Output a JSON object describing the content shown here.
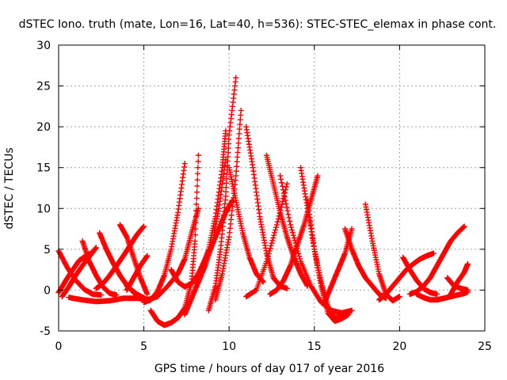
{
  "chart_data": {
    "type": "scatter",
    "title": "dSTEC Iono. truth (mate, Lon=16, Lat=40, h=536): STEC-STEC_elemax in phase cont.",
    "xlabel": "GPS time / hours of day 017 of year 2016",
    "ylabel": "dSTEC  / TECUs",
    "xlim": [
      0,
      25
    ],
    "ylim": [
      -5,
      30
    ],
    "x_ticks": [
      0,
      5,
      10,
      15,
      20,
      25
    ],
    "y_ticks": [
      -5,
      0,
      5,
      10,
      15,
      20,
      25,
      30
    ],
    "grid": true,
    "marker": "+",
    "color": "#ff0000",
    "series": [
      {
        "x": [
          0.0,
          0.5,
          1.0,
          1.5,
          2.0,
          2.5
        ],
        "y": [
          4.8,
          2.8,
          1.2,
          0.1,
          -0.5,
          -0.6
        ]
      },
      {
        "x": [
          0.0,
          0.4,
          0.8,
          1.2,
          1.6,
          2.0
        ],
        "y": [
          -0.3,
          1.1,
          2.4,
          3.6,
          4.2,
          4.6
        ]
      },
      {
        "x": [
          0.2,
          0.6,
          1.0,
          1.4,
          1.8,
          2.2
        ],
        "y": [
          -0.8,
          0.4,
          1.8,
          3.0,
          4.1,
          5.2
        ]
      },
      {
        "x": [
          1.4,
          1.8,
          2.2,
          2.6,
          3.0,
          3.4
        ],
        "y": [
          6.0,
          3.5,
          1.8,
          0.4,
          -0.4,
          -0.6
        ]
      },
      {
        "x": [
          2.2,
          2.6,
          3.0,
          3.4,
          3.8,
          4.2,
          4.6,
          5.0
        ],
        "y": [
          0.2,
          0.8,
          1.8,
          3.0,
          4.2,
          5.5,
          6.8,
          7.8
        ]
      },
      {
        "x": [
          2.4,
          2.8,
          3.2,
          3.6,
          4.0,
          4.4,
          4.8,
          5.2
        ],
        "y": [
          7.0,
          5.0,
          3.3,
          1.8,
          0.6,
          -0.3,
          -1.0,
          -1.3
        ]
      },
      {
        "x": [
          3.6,
          4.0,
          4.4,
          4.8,
          5.2
        ],
        "y": [
          8.0,
          6.5,
          4.0,
          1.5,
          -0.5
        ]
      },
      {
        "x": [
          4.0,
          4.4,
          4.8,
          5.2
        ],
        "y": [
          0.0,
          1.5,
          3.0,
          4.2
        ]
      },
      {
        "x": [
          0.6,
          1.4,
          2.2,
          3.0,
          3.8,
          4.6,
          5.4
        ],
        "y": [
          -0.9,
          -1.2,
          -1.4,
          -1.3,
          -1.0,
          -1.0,
          -1.2
        ]
      },
      {
        "x": [
          4.0,
          4.6,
          5.2,
          5.8,
          6.4,
          7.0,
          7.4,
          7.8,
          8.2
        ],
        "y": [
          0.5,
          -0.5,
          -1.2,
          -0.8,
          0.5,
          2.0,
          3.8,
          7.0,
          10.0
        ]
      },
      {
        "x": [
          5.0,
          5.4,
          5.8,
          6.2,
          6.6,
          7.0,
          7.4
        ],
        "y": [
          -1.5,
          -1.2,
          -0.2,
          1.8,
          5.0,
          9.5,
          15.5
        ]
      },
      {
        "x": [
          5.4,
          5.8,
          6.2,
          6.6,
          7.0,
          7.4,
          7.8,
          8.0,
          8.2
        ],
        "y": [
          -2.5,
          -3.8,
          -4.3,
          -4.0,
          -3.4,
          -2.2,
          1.0,
          6.0,
          16.5
        ]
      },
      {
        "x": [
          6.6,
          7.0,
          7.4,
          7.8,
          8.2,
          8.6,
          9.0,
          9.4,
          9.8,
          10.2
        ],
        "y": [
          2.5,
          1.0,
          0.4,
          0.8,
          2.0,
          3.8,
          5.5,
          7.5,
          9.5,
          11.0
        ]
      },
      {
        "x": [
          7.4,
          7.8,
          8.2,
          8.6,
          9.0,
          9.4,
          9.8
        ],
        "y": [
          -3.0,
          -1.0,
          1.0,
          3.0,
          5.5,
          10.0,
          16.0
        ]
      },
      {
        "x": [
          8.0,
          8.4,
          8.8,
          9.2,
          9.6,
          9.8
        ],
        "y": [
          0.8,
          2.5,
          5.0,
          9.0,
          15.0,
          19.5
        ]
      },
      {
        "x": [
          8.8,
          9.2,
          9.5,
          9.8,
          10.0,
          10.4
        ],
        "y": [
          -2.5,
          0.5,
          5.0,
          11.5,
          19.0,
          26.0
        ]
      },
      {
        "x": [
          9.2,
          9.6,
          10.0,
          10.4,
          10.7
        ],
        "y": [
          -1.2,
          2.0,
          6.5,
          14.0,
          22.0
        ]
      },
      {
        "x": [
          10.0,
          10.4,
          10.8,
          11.2,
          11.6,
          12.0
        ],
        "y": [
          15.0,
          11.0,
          7.0,
          4.0,
          2.0,
          1.0
        ]
      },
      {
        "x": [
          11.0,
          11.4,
          11.8,
          12.2,
          12.6,
          13.0,
          13.4
        ],
        "y": [
          20.0,
          15.0,
          9.0,
          4.5,
          1.5,
          0.5,
          0.2
        ]
      },
      {
        "x": [
          11.0,
          11.6,
          12.2,
          12.8,
          13.4
        ],
        "y": [
          -0.8,
          0.0,
          3.5,
          8.0,
          13.0
        ]
      },
      {
        "x": [
          12.2,
          12.6,
          13.0,
          13.4,
          13.8,
          14.2,
          14.6
        ],
        "y": [
          16.5,
          13.0,
          9.5,
          6.5,
          4.0,
          2.0,
          0.5
        ]
      },
      {
        "x": [
          12.4,
          12.8,
          13.2,
          13.6,
          14.0,
          14.4,
          14.8,
          15.2
        ],
        "y": [
          -0.5,
          0.0,
          1.2,
          3.0,
          5.5,
          8.0,
          11.0,
          14.0
        ]
      },
      {
        "x": [
          13.0,
          13.6,
          14.2,
          14.8,
          15.4,
          16.0,
          16.6,
          17.2
        ],
        "y": [
          14.0,
          8.0,
          3.5,
          0.5,
          -1.5,
          -2.5,
          -2.8,
          -2.5
        ]
      },
      {
        "x": [
          14.2,
          14.6,
          15.0,
          15.4,
          15.8,
          16.2,
          16.6
        ],
        "y": [
          15.0,
          10.0,
          5.0,
          1.0,
          -2.0,
          -3.5,
          -3.0
        ]
      },
      {
        "x": [
          14.6,
          15.0,
          15.4,
          15.8,
          16.2,
          16.6,
          17.0
        ],
        "y": [
          11.0,
          5.0,
          0.5,
          -2.8,
          -3.8,
          -3.5,
          -3.0
        ]
      },
      {
        "x": [
          15.6,
          16.0,
          16.4,
          16.8,
          17.2
        ],
        "y": [
          -1.5,
          0.5,
          2.5,
          4.5,
          7.5
        ]
      },
      {
        "x": [
          16.8,
          17.2,
          17.6,
          18.0,
          18.4,
          18.8,
          19.2
        ],
        "y": [
          7.5,
          5.0,
          3.0,
          1.5,
          0.5,
          -0.5,
          -1.0
        ]
      },
      {
        "x": [
          18.0,
          18.4,
          18.8,
          19.2,
          19.6,
          20.0
        ],
        "y": [
          10.5,
          6.0,
          2.0,
          -0.5,
          -1.3,
          -0.8
        ]
      },
      {
        "x": [
          18.8,
          19.2,
          19.6,
          20.0,
          20.4,
          20.8,
          21.2,
          21.6,
          22.0
        ],
        "y": [
          -1.2,
          -0.5,
          0.5,
          1.5,
          2.5,
          3.2,
          3.8,
          4.2,
          4.5
        ]
      },
      {
        "x": [
          20.2,
          20.6,
          21.0,
          21.4,
          21.8,
          22.2
        ],
        "y": [
          4.0,
          2.5,
          1.2,
          0.2,
          -0.3,
          -0.5
        ]
      },
      {
        "x": [
          20.6,
          21.0,
          21.4,
          21.8,
          22.2,
          22.6,
          23.0,
          23.4,
          23.8
        ],
        "y": [
          -0.5,
          -0.2,
          0.5,
          1.5,
          3.0,
          4.5,
          6.0,
          7.0,
          7.8
        ]
      },
      {
        "x": [
          21.0,
          21.4,
          21.8,
          22.2,
          22.6,
          23.0,
          23.4,
          23.8,
          24.0
        ],
        "y": [
          -0.5,
          -0.9,
          -1.2,
          -1.2,
          -1.0,
          -0.8,
          -0.6,
          -0.4,
          -0.2
        ]
      },
      {
        "x": [
          22.8,
          23.2,
          23.6,
          24.0
        ],
        "y": [
          1.5,
          0.5,
          0.2,
          0.0
        ]
      },
      {
        "x": [
          23.0,
          23.4,
          23.8,
          24.0
        ],
        "y": [
          -0.5,
          1.0,
          2.2,
          3.2
        ]
      }
    ]
  }
}
